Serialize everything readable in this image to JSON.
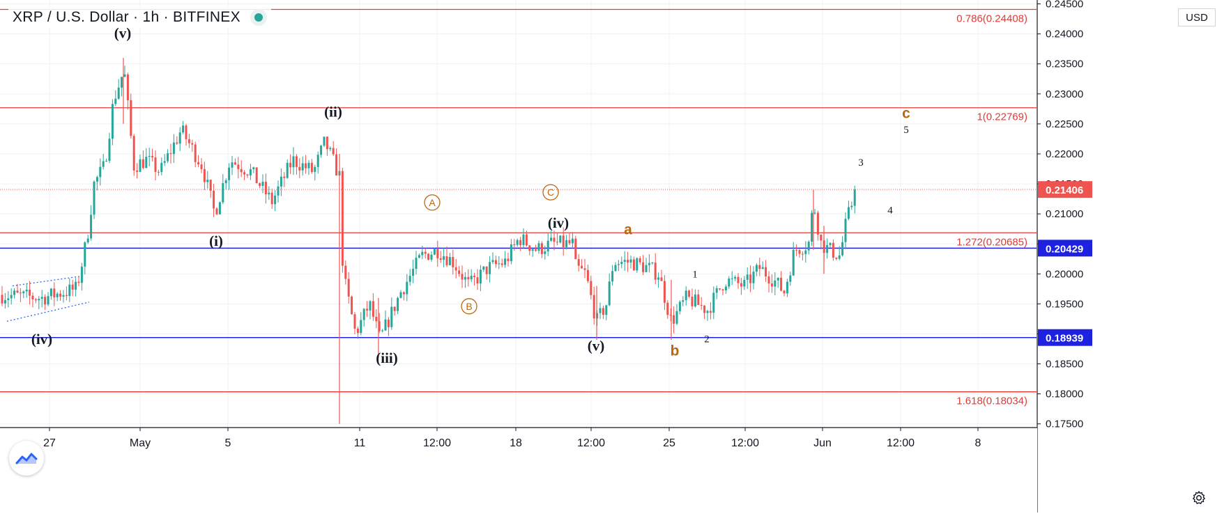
{
  "header": {
    "symbol": "XRP",
    "quote": "U.S. Dollar",
    "interval": "1h",
    "exchange": "BITFINEX",
    "title": "XRP / U.S. Dollar · 1h · BITFINEX",
    "status_icon": "market-open-dot",
    "status_color": "#26a69a"
  },
  "price_scale": {
    "currency": "USD"
  },
  "colors": {
    "up": "#26a69a",
    "down": "#ef5350",
    "fib_line": "#e53935",
    "support_line": "#1e22e0",
    "wave_black": "#131722",
    "wave_orange": "#b8690e",
    "last_price_bg": "#ef5350",
    "support_label_bg": "#1e22e0"
  },
  "chart_data": {
    "type": "candlestick",
    "title": "XRP / U.S. Dollar · 1h · BITFINEX",
    "xlabel": "",
    "ylabel": "USD",
    "ylim": [
      0.1745,
      0.2453
    ],
    "grid": true,
    "x_tick_labels": [
      "27",
      "May",
      "5",
      "11",
      "12:00",
      "18",
      "12:00",
      "25",
      "12:00",
      "Jun",
      "12:00",
      "8"
    ],
    "y_tick_values": [
      0.175,
      0.18,
      0.185,
      0.19,
      0.195,
      0.2,
      0.205,
      0.21,
      0.215,
      0.22,
      0.225,
      0.23,
      0.235,
      0.24,
      0.245
    ],
    "y_tick_labels": [
      "0.17500",
      "0.18000",
      "0.18500",
      "0.19000",
      "0.19500",
      "0.20000",
      "0.20500",
      "0.21000",
      "0.21500",
      "0.22000",
      "0.22500",
      "0.23000",
      "0.23500",
      "0.24000",
      "0.24500"
    ],
    "price_path": [
      [
        0,
        0.1965
      ],
      [
        60,
        0.196
      ],
      [
        110,
        0.1975
      ],
      [
        125,
        0.206
      ],
      [
        135,
        0.215
      ],
      [
        150,
        0.218
      ],
      [
        163,
        0.229
      ],
      [
        178,
        0.234
      ],
      [
        192,
        0.218
      ],
      [
        210,
        0.219
      ],
      [
        230,
        0.217
      ],
      [
        260,
        0.224
      ],
      [
        290,
        0.218
      ],
      [
        308,
        0.21
      ],
      [
        330,
        0.219
      ],
      [
        360,
        0.217
      ],
      [
        390,
        0.212
      ],
      [
        420,
        0.219
      ],
      [
        450,
        0.217
      ],
      [
        466,
        0.222
      ],
      [
        488,
        0.216
      ],
      [
        492,
        0.2
      ],
      [
        510,
        0.19
      ],
      [
        530,
        0.195
      ],
      [
        545,
        0.189
      ],
      [
        575,
        0.197
      ],
      [
        605,
        0.203
      ],
      [
        628,
        0.204
      ],
      [
        650,
        0.202
      ],
      [
        673,
        0.198
      ],
      [
        700,
        0.201
      ],
      [
        725,
        0.202
      ],
      [
        745,
        0.206
      ],
      [
        770,
        0.204
      ],
      [
        790,
        0.205
      ],
      [
        822,
        0.205
      ],
      [
        826,
        0.201
      ],
      [
        840,
        0.2
      ],
      [
        856,
        0.192
      ],
      [
        870,
        0.195
      ],
      [
        880,
        0.202
      ],
      [
        905,
        0.202
      ],
      [
        930,
        0.201
      ],
      [
        945,
        0.2
      ],
      [
        963,
        0.192
      ],
      [
        985,
        0.196
      ],
      [
        1015,
        0.194
      ],
      [
        1040,
        0.199
      ],
      [
        1068,
        0.198
      ],
      [
        1090,
        0.201
      ],
      [
        1110,
        0.199
      ],
      [
        1125,
        0.197
      ],
      [
        1140,
        0.204
      ],
      [
        1160,
        0.205
      ],
      [
        1167,
        0.212
      ],
      [
        1178,
        0.205
      ],
      [
        1190,
        0.204
      ],
      [
        1205,
        0.203
      ],
      [
        1213,
        0.208
      ],
      [
        1220,
        0.211
      ],
      [
        1229,
        0.2143
      ]
    ],
    "spikes": [
      {
        "x": 177,
        "high": 0.236,
        "low": 0.225
      },
      {
        "x": 487,
        "high": 0.22,
        "low": 0.175
      },
      {
        "x": 543,
        "high": 0.196,
        "low": 0.186
      },
      {
        "x": 856,
        "high": 0.198,
        "low": 0.189
      },
      {
        "x": 963,
        "high": 0.199,
        "low": 0.189
      },
      {
        "x": 1167,
        "high": 0.214,
        "low": 0.204
      },
      {
        "x": 1182,
        "high": 0.208,
        "low": 0.2
      }
    ],
    "fib_levels": [
      {
        "label": "0.786(0.24408)",
        "value": 0.24408
      },
      {
        "label": "1(0.22769)",
        "value": 0.22769
      },
      {
        "label": "1.272(0.20685)",
        "value": 0.20685
      },
      {
        "label": "1.618(0.18034)",
        "value": 0.18034
      }
    ],
    "support_levels": [
      {
        "label": "0.20429",
        "value": 0.20429
      },
      {
        "label": "0.18939",
        "value": 0.18939
      }
    ],
    "last_price": {
      "label": "0.21406",
      "value": 0.21406
    },
    "wave_labels": [
      {
        "text": "(v)",
        "x": 176,
        "y": 0.2393,
        "style": "black"
      },
      {
        "text": "(iv)",
        "x": 60,
        "y": 0.1883,
        "style": "black"
      },
      {
        "text": "(i)",
        "x": 310,
        "y": 0.2047,
        "style": "black"
      },
      {
        "text": "(ii)",
        "x": 478,
        "y": 0.2262,
        "style": "black"
      },
      {
        "text": "(iii)",
        "x": 555,
        "y": 0.1852,
        "style": "black"
      },
      {
        "text": "(iv)",
        "x": 801,
        "y": 0.2077,
        "style": "black"
      },
      {
        "text": "(v)",
        "x": 855,
        "y": 0.1872,
        "style": "black"
      },
      {
        "text": "a",
        "x": 901,
        "y": 0.2066,
        "style": "orange-bold"
      },
      {
        "text": "b",
        "x": 968,
        "y": 0.1864,
        "style": "orange-bold"
      },
      {
        "text": "c",
        "x": 1300,
        "y": 0.226,
        "style": "orange-bold"
      },
      {
        "text": "1",
        "x": 997,
        "y": 0.1994,
        "style": "small"
      },
      {
        "text": "2",
        "x": 1014,
        "y": 0.1886,
        "style": "small"
      },
      {
        "text": "3",
        "x": 1235,
        "y": 0.218,
        "style": "small"
      },
      {
        "text": "4",
        "x": 1277,
        "y": 0.2101,
        "style": "small"
      },
      {
        "text": "5",
        "x": 1300,
        "y": 0.2235,
        "style": "small"
      }
    ],
    "circled_labels": [
      {
        "text": "A",
        "x": 620,
        "y": 0.2119
      },
      {
        "text": "B",
        "x": 673,
        "y": 0.1946
      },
      {
        "text": "C",
        "x": 790,
        "y": 0.2136
      }
    ],
    "channel": {
      "upper": [
        [
          18,
          0.198
        ],
        [
          122,
          0.1997
        ]
      ],
      "lower": [
        [
          10,
          0.1921
        ],
        [
          128,
          0.1953
        ]
      ]
    }
  }
}
